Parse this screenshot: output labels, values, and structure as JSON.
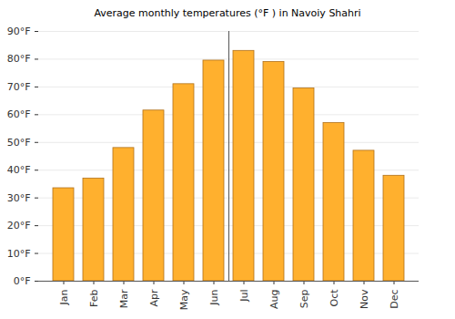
{
  "chart_data": {
    "type": "bar",
    "title": "Average monthly temperatures (°F ) in Navoiy Shahri",
    "categories": [
      "Jan",
      "Feb",
      "Mar",
      "Apr",
      "May",
      "Jun",
      "Jul",
      "Aug",
      "Sep",
      "Oct",
      "Nov",
      "Dec"
    ],
    "values": [
      33.5,
      37,
      48,
      61.5,
      71,
      79.5,
      83,
      79,
      69.5,
      57,
      47,
      38
    ],
    "color": "#ffb02e",
    "ylim": [
      0,
      90
    ],
    "yticks": [
      {
        "value": 0,
        "label": "0°F"
      },
      {
        "value": 10,
        "label": "10°F"
      },
      {
        "value": 20,
        "label": "20°F"
      },
      {
        "value": 30,
        "label": "30°F"
      },
      {
        "value": 40,
        "label": "40°F"
      },
      {
        "value": 50,
        "label": "50°F"
      },
      {
        "value": 60,
        "label": "60°F"
      },
      {
        "value": 70,
        "label": "70°F"
      },
      {
        "value": 80,
        "label": "80°F"
      },
      {
        "value": 90,
        "label": "90°F"
      }
    ],
    "grid": true
  }
}
